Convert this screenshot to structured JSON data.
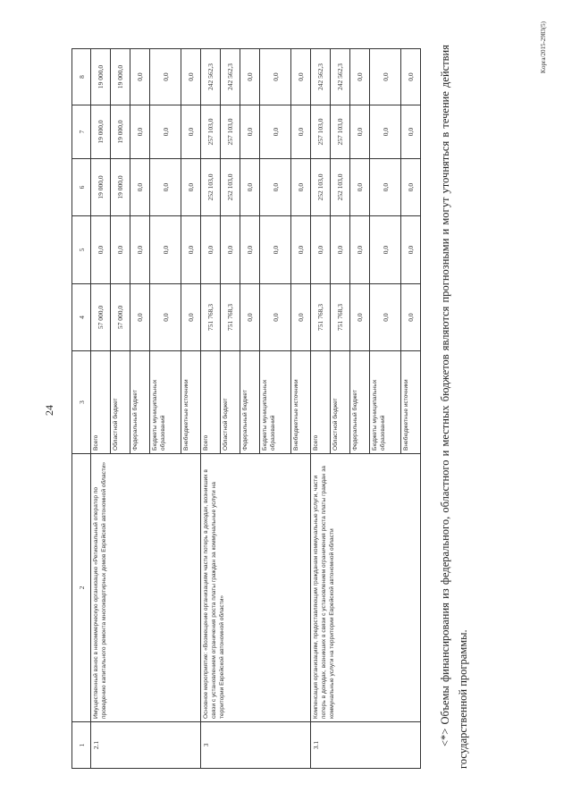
{
  "page_number": "24",
  "table": {
    "headers": [
      "1",
      "2",
      "3",
      "4",
      "5",
      "6",
      "7",
      "8"
    ],
    "groups": [
      {
        "num": "2.1",
        "title": "Имущественный взнос в некоммерческую организацию «Региональный оператор по проведению капитального ремонта многоквартирных домов Еврейской автономной области»",
        "rows": [
          {
            "source": "Всего",
            "values": [
              "57 000,0",
              "0,0",
              "19 000,0",
              "19 000,0",
              "19 000,0"
            ]
          },
          {
            "source": "Областной бюджет",
            "values": [
              "57 000,0",
              "0,0",
              "19 000,0",
              "19 000,0",
              "19 000,0"
            ]
          },
          {
            "source": "Федеральный бюджет",
            "values": [
              "0,0",
              "0,0",
              "0,0",
              "0,0",
              "0,0"
            ]
          },
          {
            "source": "Бюджеты муниципальных образований",
            "values": [
              "0,0",
              "0,0",
              "0,0",
              "0,0",
              "0,0"
            ]
          },
          {
            "source": "Внебюджетные источники",
            "values": [
              "0,0",
              "0,0",
              "0,0",
              "0,0",
              "0,0"
            ]
          }
        ]
      },
      {
        "num": "3",
        "title": "Основное мероприятие: «Возмещение организациям части потерь в доходах, возникших в связи с установлением ограничения роста платы граждан за коммунальные услуги на территории Еврейской автономной области»",
        "rows": [
          {
            "source": "Всего",
            "values": [
              "751 768,3",
              "0,0",
              "252 103,0",
              "257 103,0",
              "242 562,3"
            ]
          },
          {
            "source": "Областной бюджет",
            "values": [
              "751 768,3",
              "0,0",
              "252 103,0",
              "257 103,0",
              "242 562,3"
            ]
          },
          {
            "source": "Федеральный бюджет",
            "values": [
              "0,0",
              "0,0",
              "0,0",
              "0,0",
              "0,0"
            ]
          },
          {
            "source": "Бюджеты муниципальных образований",
            "values": [
              "0,0",
              "0,0",
              "0,0",
              "0,0",
              "0,0"
            ]
          },
          {
            "source": "Внебюджетные источники",
            "values": [
              "0,0",
              "0,0",
              "0,0",
              "0,0",
              "0,0"
            ]
          }
        ]
      },
      {
        "num": "3.1",
        "title": "Компенсация организациям, предоставляющим гражданам коммунальные услуги, части потерь в доходах, возникших в связи с установлением ограничения роста платы граждан за коммунальные услуги на территории Еврейской автономной области",
        "rows": [
          {
            "source": "Всего",
            "values": [
              "751 768,3",
              "0,0",
              "252 103,0",
              "257 103,0",
              "242 562,3"
            ]
          },
          {
            "source": "Областной бюджет",
            "values": [
              "751 768,3",
              "0,0",
              "252 103,0",
              "257 103,0",
              "242 562,3"
            ]
          },
          {
            "source": "Федеральный бюджет",
            "values": [
              "0,0",
              "0,0",
              "0,0",
              "0,0",
              "0,0"
            ]
          },
          {
            "source": "Бюджеты муниципальных образований",
            "values": [
              "0,0",
              "0,0",
              "0,0",
              "0,0",
              "0,0"
            ]
          },
          {
            "source": "Внебюджетные источники",
            "values": [
              "0,0",
              "0,0",
              "0,0",
              "0,0",
              "0,0"
            ]
          }
        ]
      }
    ]
  },
  "footnote": "<*> Объемы финансирования из федерального, областного и местных бюджетов являются прогнозными и могут уточняться в течение действия государственной программы.",
  "stamp": "Kopra/2015-2983(5)"
}
